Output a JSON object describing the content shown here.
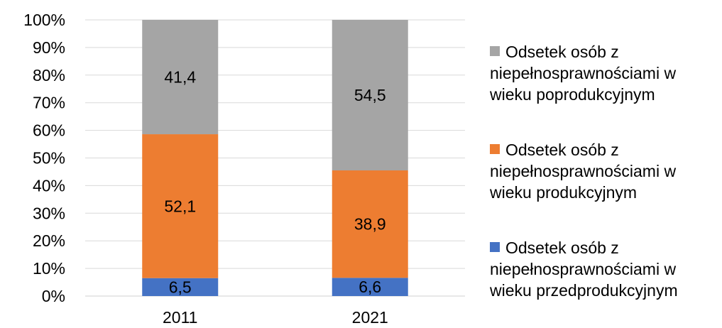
{
  "chart_data": {
    "type": "stacked-bar-100",
    "categories": [
      "2011",
      "2021"
    ],
    "ylim": [
      0,
      100
    ],
    "yticks": [
      "0%",
      "10%",
      "20%",
      "30%",
      "40%",
      "50%",
      "60%",
      "70%",
      "80%",
      "90%",
      "100%"
    ],
    "grid": true,
    "legend_position": "right",
    "series": [
      {
        "name": "Odsetek osób z niepełnosprawnościami w wieku przedprodukcyjnym",
        "color": "#4472C4",
        "values": [
          6.5,
          6.6
        ],
        "labels": [
          "6,5",
          "6,6"
        ]
      },
      {
        "name": "Odsetek osób z niepełnosprawnościami w wieku produkcyjnym",
        "color": "#ED7D31",
        "values": [
          52.1,
          38.9
        ],
        "labels": [
          "52,1",
          "38,9"
        ]
      },
      {
        "name": "Odsetek osób z niepełnosprawnościami w wieku poprodukcyjnym",
        "color": "#A5A5A5",
        "values": [
          41.4,
          54.5
        ],
        "labels": [
          "41,4",
          "54,5"
        ]
      }
    ]
  },
  "legend": [
    {
      "line1": "Odsetek osób z",
      "line2": "niepełnosprawnościami w",
      "line3": "wieku poprodukcyjnym",
      "color": "#A5A5A5"
    },
    {
      "line1": "Odsetek osób z",
      "line2": "niepełnosprawnościami w",
      "line3": "wieku produkcyjnym",
      "color": "#ED7D31"
    },
    {
      "line1": "Odsetek osób z",
      "line2": "niepełnosprawnościami w",
      "line3": "wieku przedprodukcyjnym",
      "color": "#4472C4"
    }
  ]
}
